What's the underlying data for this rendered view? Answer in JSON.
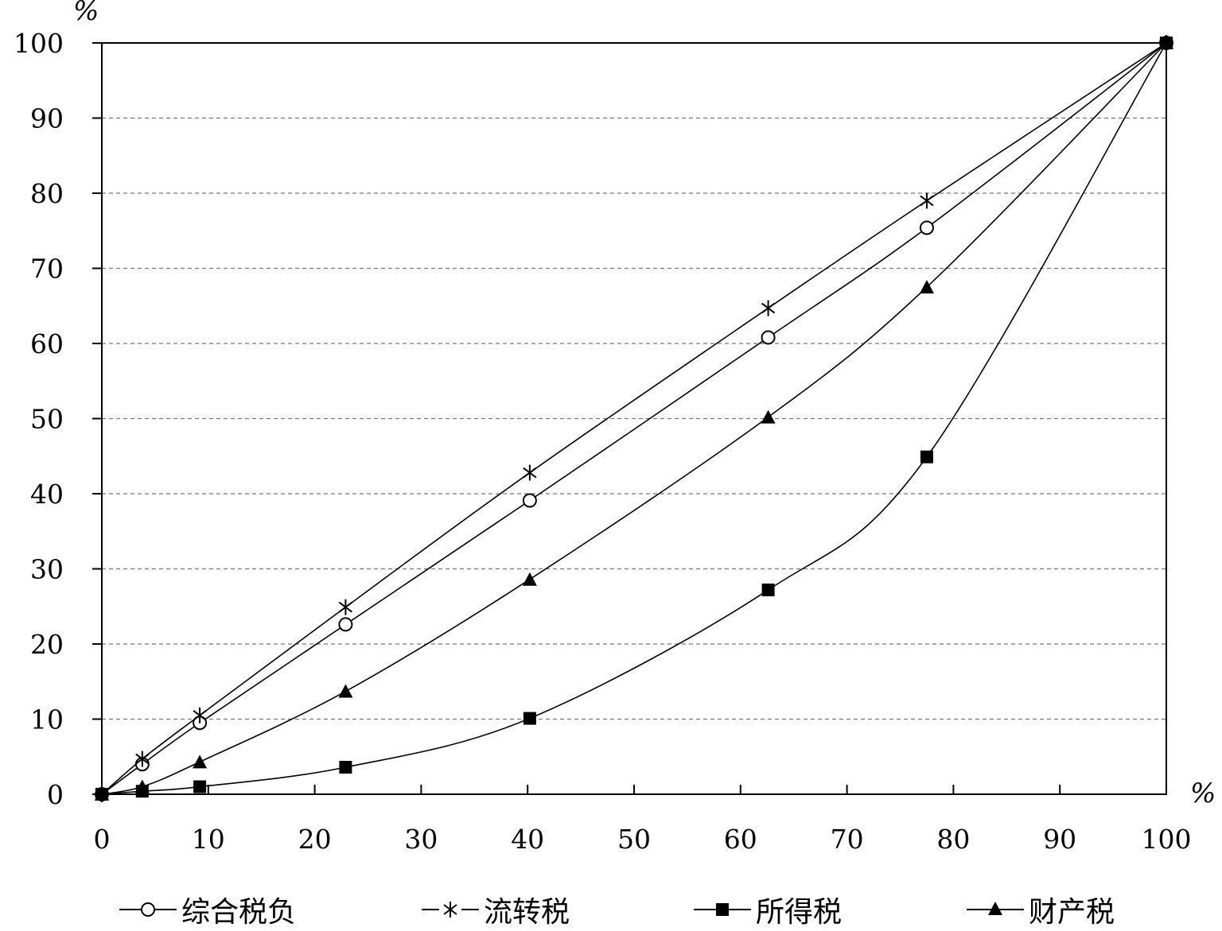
{
  "chart_data": {
    "type": "line",
    "title": "",
    "x_unit": "%",
    "y_unit": "%",
    "xlim": [
      0,
      100
    ],
    "ylim": [
      0,
      100
    ],
    "xticks": [
      0,
      10,
      20,
      30,
      40,
      50,
      60,
      70,
      80,
      90,
      100
    ],
    "yticks": [
      0,
      10,
      20,
      30,
      40,
      50,
      60,
      70,
      80,
      90,
      100
    ],
    "grid": "horizontal-dashed",
    "legend_position": "bottom",
    "x": [
      0,
      3.8,
      9.2,
      22.9,
      40.2,
      62.6,
      77.5,
      100
    ],
    "series": [
      {
        "name": "综合税负",
        "marker": "open-circle",
        "values": [
          0,
          4.0,
          9.5,
          22.6,
          39.1,
          60.8,
          75.4,
          100
        ]
      },
      {
        "name": "流转税",
        "marker": "asterisk",
        "values": [
          0,
          4.7,
          10.5,
          24.9,
          42.8,
          64.7,
          79.0,
          100
        ]
      },
      {
        "name": "所得税",
        "marker": "filled-square",
        "values": [
          0,
          0.4,
          1.0,
          3.6,
          10.1,
          27.2,
          44.9,
          100
        ]
      },
      {
        "name": "财产税",
        "marker": "filled-triangle",
        "values": [
          0,
          1.0,
          4.3,
          13.7,
          28.6,
          50.2,
          67.5,
          100
        ]
      }
    ]
  }
}
